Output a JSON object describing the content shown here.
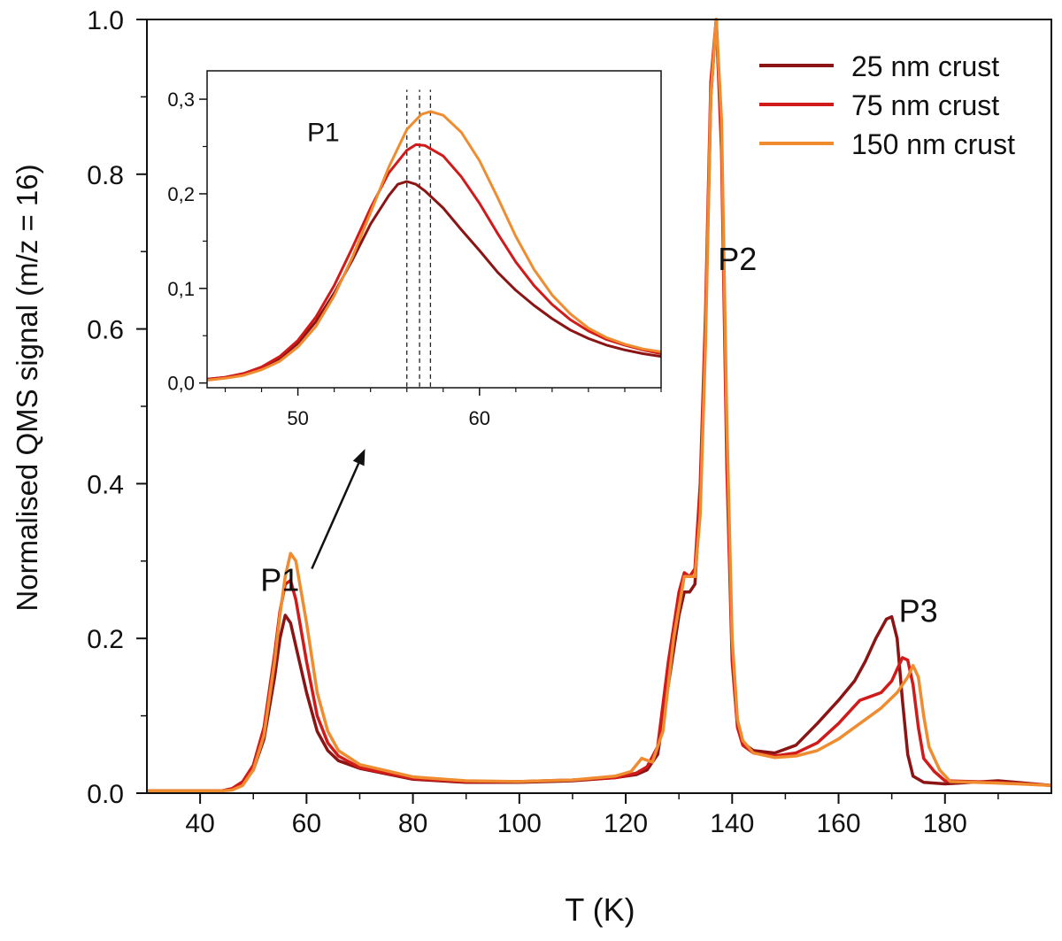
{
  "chart_data": [
    {
      "type": "line",
      "xlabel": "T (K)",
      "ylabel": "Normalised QMS signal (m/z = 16)",
      "xlim": [
        30,
        200
      ],
      "ylim": [
        0,
        1.0
      ],
      "x_ticks": [
        40,
        60,
        80,
        100,
        120,
        140,
        160,
        180
      ],
      "x_tick_labels": [
        "40",
        "60",
        "80",
        "100",
        "120",
        "140",
        "160",
        "180"
      ],
      "y_ticks": [
        0.0,
        0.2,
        0.4,
        0.6,
        0.8,
        1.0
      ],
      "y_tick_labels": [
        "0.0",
        "0.2",
        "0.4",
        "0.6",
        "0.8",
        "1.0"
      ],
      "grid": false,
      "legend_position": "top-right",
      "annotations": [
        {
          "text": "P1",
          "x": 55,
          "y": 0.275
        },
        {
          "text": "P2",
          "x": 141,
          "y": 0.69
        },
        {
          "text": "P3",
          "x": 175,
          "y": 0.235
        }
      ],
      "arrow": {
        "from": [
          61,
          0.29
        ],
        "to": [
          71,
          0.445
        ]
      },
      "series": [
        {
          "name": "25 nm crust",
          "color": "#8b1414",
          "points": [
            [
              30,
              0.003
            ],
            [
              44,
              0.003
            ],
            [
              46,
              0.005
            ],
            [
              48,
              0.012
            ],
            [
              50,
              0.03
            ],
            [
              52,
              0.07
            ],
            [
              54,
              0.15
            ],
            [
              55,
              0.2
            ],
            [
              56,
              0.23
            ],
            [
              57,
              0.22
            ],
            [
              58,
              0.19
            ],
            [
              60,
              0.13
            ],
            [
              62,
              0.08
            ],
            [
              64,
              0.055
            ],
            [
              66,
              0.042
            ],
            [
              70,
              0.032
            ],
            [
              80,
              0.018
            ],
            [
              90,
              0.014
            ],
            [
              100,
              0.014
            ],
            [
              110,
              0.016
            ],
            [
              118,
              0.02
            ],
            [
              122,
              0.024
            ],
            [
              124,
              0.03
            ],
            [
              126,
              0.05
            ],
            [
              128,
              0.14
            ],
            [
              130,
              0.23
            ],
            [
              131,
              0.26
            ],
            [
              132,
              0.26
            ],
            [
              133,
              0.27
            ],
            [
              134,
              0.38
            ],
            [
              135,
              0.6
            ],
            [
              136,
              0.9
            ],
            [
              137,
              1.0
            ],
            [
              138,
              0.85
            ],
            [
              139,
              0.45
            ],
            [
              140,
              0.18
            ],
            [
              141,
              0.09
            ],
            [
              142,
              0.065
            ],
            [
              144,
              0.055
            ],
            [
              148,
              0.052
            ],
            [
              152,
              0.062
            ],
            [
              156,
              0.09
            ],
            [
              160,
              0.12
            ],
            [
              163,
              0.145
            ],
            [
              165,
              0.17
            ],
            [
              167,
              0.2
            ],
            [
              169,
              0.225
            ],
            [
              170,
              0.228
            ],
            [
              171,
              0.2
            ],
            [
              172,
              0.12
            ],
            [
              173,
              0.05
            ],
            [
              174,
              0.022
            ],
            [
              176,
              0.014
            ],
            [
              180,
              0.012
            ],
            [
              190,
              0.016
            ],
            [
              195,
              0.013
            ],
            [
              200,
              0.01
            ]
          ]
        },
        {
          "name": "75 nm crust",
          "color": "#d11a1a",
          "points": [
            [
              30,
              0.003
            ],
            [
              44,
              0.003
            ],
            [
              46,
              0.006
            ],
            [
              48,
              0.015
            ],
            [
              50,
              0.036
            ],
            [
              52,
              0.085
            ],
            [
              54,
              0.18
            ],
            [
              55,
              0.235
            ],
            [
              56,
              0.27
            ],
            [
              57,
              0.275
            ],
            [
              58,
              0.25
            ],
            [
              60,
              0.17
            ],
            [
              62,
              0.1
            ],
            [
              64,
              0.065
            ],
            [
              66,
              0.048
            ],
            [
              70,
              0.033
            ],
            [
              80,
              0.019
            ],
            [
              90,
              0.015
            ],
            [
              100,
              0.015
            ],
            [
              110,
              0.017
            ],
            [
              118,
              0.02
            ],
            [
              122,
              0.026
            ],
            [
              124,
              0.034
            ],
            [
              126,
              0.06
            ],
            [
              128,
              0.17
            ],
            [
              130,
              0.26
            ],
            [
              131,
              0.285
            ],
            [
              132,
              0.28
            ],
            [
              133,
              0.29
            ],
            [
              134,
              0.4
            ],
            [
              135,
              0.62
            ],
            [
              136,
              0.92
            ],
            [
              137,
              1.0
            ],
            [
              138,
              0.83
            ],
            [
              139,
              0.42
            ],
            [
              140,
              0.17
            ],
            [
              141,
              0.085
            ],
            [
              142,
              0.062
            ],
            [
              144,
              0.052
            ],
            [
              148,
              0.048
            ],
            [
              152,
              0.052
            ],
            [
              156,
              0.065
            ],
            [
              160,
              0.09
            ],
            [
              164,
              0.12
            ],
            [
              166,
              0.125
            ],
            [
              168,
              0.13
            ],
            [
              170,
              0.145
            ],
            [
              172,
              0.175
            ],
            [
              173,
              0.172
            ],
            [
              174,
              0.14
            ],
            [
              175,
              0.085
            ],
            [
              176,
              0.045
            ],
            [
              178,
              0.028
            ],
            [
              180,
              0.016
            ],
            [
              190,
              0.014
            ],
            [
              200,
              0.01
            ]
          ]
        },
        {
          "name": "150 nm crust",
          "color": "#f08c30",
          "points": [
            [
              30,
              0.003
            ],
            [
              44,
              0.003
            ],
            [
              46,
              0.004
            ],
            [
              48,
              0.01
            ],
            [
              50,
              0.03
            ],
            [
              52,
              0.075
            ],
            [
              54,
              0.17
            ],
            [
              55,
              0.23
            ],
            [
              56,
              0.28
            ],
            [
              57,
              0.31
            ],
            [
              58,
              0.3
            ],
            [
              60,
              0.22
            ],
            [
              62,
              0.13
            ],
            [
              64,
              0.08
            ],
            [
              66,
              0.055
            ],
            [
              70,
              0.037
            ],
            [
              80,
              0.021
            ],
            [
              90,
              0.016
            ],
            [
              100,
              0.015
            ],
            [
              110,
              0.017
            ],
            [
              118,
              0.022
            ],
            [
              121,
              0.028
            ],
            [
              123,
              0.045
            ],
            [
              125,
              0.04
            ],
            [
              127,
              0.08
            ],
            [
              129,
              0.2
            ],
            [
              131,
              0.28
            ],
            [
              132,
              0.28
            ],
            [
              133,
              0.28
            ],
            [
              134,
              0.36
            ],
            [
              135,
              0.58
            ],
            [
              136,
              0.9
            ],
            [
              137,
              1.0
            ],
            [
              138,
              0.87
            ],
            [
              139,
              0.48
            ],
            [
              140,
              0.2
            ],
            [
              141,
              0.095
            ],
            [
              142,
              0.068
            ],
            [
              144,
              0.052
            ],
            [
              148,
              0.046
            ],
            [
              152,
              0.048
            ],
            [
              156,
              0.055
            ],
            [
              160,
              0.07
            ],
            [
              164,
              0.09
            ],
            [
              168,
              0.11
            ],
            [
              171,
              0.13
            ],
            [
              173,
              0.15
            ],
            [
              174,
              0.165
            ],
            [
              175,
              0.15
            ],
            [
              176,
              0.1
            ],
            [
              177,
              0.06
            ],
            [
              178,
              0.045
            ],
            [
              179,
              0.03
            ],
            [
              181,
              0.015
            ],
            [
              190,
              0.013
            ],
            [
              200,
              0.01
            ]
          ]
        }
      ]
    },
    {
      "type": "line",
      "xlabel": "",
      "ylabel": "",
      "xlim": [
        45,
        70
      ],
      "ylim": [
        -0.005,
        0.33
      ],
      "x_ticks": [
        50,
        60
      ],
      "x_tick_labels": [
        "50",
        "60"
      ],
      "y_ticks": [
        0.0,
        0.1,
        0.2,
        0.3
      ],
      "y_tick_labels": [
        "0,0",
        "0,1",
        "0,2",
        "0,3"
      ],
      "grid": false,
      "annotations": [
        {
          "text": "P1",
          "x": 51.4,
          "y": 0.265
        }
      ],
      "vlines": [
        56.0,
        56.7,
        57.3
      ],
      "series": [
        {
          "name": "25 nm crust",
          "color": "#8b1414",
          "points": [
            [
              45,
              0.004
            ],
            [
              46,
              0.006
            ],
            [
              47,
              0.01
            ],
            [
              48,
              0.016
            ],
            [
              49,
              0.026
            ],
            [
              50,
              0.042
            ],
            [
              51,
              0.065
            ],
            [
              52,
              0.095
            ],
            [
              53,
              0.13
            ],
            [
              54,
              0.168
            ],
            [
              55,
              0.198
            ],
            [
              55.5,
              0.21
            ],
            [
              56,
              0.213
            ],
            [
              56.5,
              0.21
            ],
            [
              57,
              0.203
            ],
            [
              58,
              0.185
            ],
            [
              59,
              0.162
            ],
            [
              60,
              0.14
            ],
            [
              61,
              0.117
            ],
            [
              62,
              0.098
            ],
            [
              63,
              0.082
            ],
            [
              64,
              0.068
            ],
            [
              65,
              0.056
            ],
            [
              66,
              0.047
            ],
            [
              67,
              0.04
            ],
            [
              68,
              0.035
            ],
            [
              69,
              0.031
            ],
            [
              70,
              0.028
            ]
          ]
        },
        {
          "name": "75 nm crust",
          "color": "#d11a1a",
          "points": [
            [
              45,
              0.004
            ],
            [
              46,
              0.006
            ],
            [
              47,
              0.01
            ],
            [
              48,
              0.017
            ],
            [
              49,
              0.028
            ],
            [
              50,
              0.045
            ],
            [
              51,
              0.07
            ],
            [
              52,
              0.103
            ],
            [
              53,
              0.143
            ],
            [
              54,
              0.185
            ],
            [
              55,
              0.222
            ],
            [
              56,
              0.246
            ],
            [
              56.5,
              0.252
            ],
            [
              57,
              0.251
            ],
            [
              58,
              0.24
            ],
            [
              59,
              0.218
            ],
            [
              60,
              0.19
            ],
            [
              61,
              0.158
            ],
            [
              62,
              0.128
            ],
            [
              63,
              0.103
            ],
            [
              64,
              0.083
            ],
            [
              65,
              0.067
            ],
            [
              66,
              0.055
            ],
            [
              67,
              0.046
            ],
            [
              68,
              0.04
            ],
            [
              69,
              0.035
            ],
            [
              70,
              0.031
            ]
          ]
        },
        {
          "name": "150 nm crust",
          "color": "#f08c30",
          "points": [
            [
              45,
              0.003
            ],
            [
              46,
              0.005
            ],
            [
              47,
              0.008
            ],
            [
              48,
              0.014
            ],
            [
              49,
              0.023
            ],
            [
              50,
              0.038
            ],
            [
              51,
              0.06
            ],
            [
              52,
              0.092
            ],
            [
              53,
              0.133
            ],
            [
              54,
              0.18
            ],
            [
              55,
              0.228
            ],
            [
              56,
              0.268
            ],
            [
              56.8,
              0.284
            ],
            [
              57.3,
              0.287
            ],
            [
              58,
              0.283
            ],
            [
              59,
              0.265
            ],
            [
              60,
              0.235
            ],
            [
              61,
              0.196
            ],
            [
              62,
              0.155
            ],
            [
              63,
              0.12
            ],
            [
              64,
              0.093
            ],
            [
              65,
              0.073
            ],
            [
              66,
              0.058
            ],
            [
              67,
              0.048
            ],
            [
              68,
              0.041
            ],
            [
              69,
              0.036
            ],
            [
              70,
              0.033
            ]
          ]
        }
      ]
    }
  ]
}
